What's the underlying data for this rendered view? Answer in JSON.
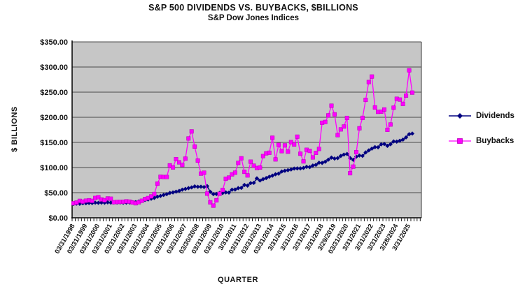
{
  "chart_data": {
    "type": "line",
    "title": "S&P 500 DIVIDENDS VS. BUYBACKS,  $BILLIONS",
    "subtitle": "S&P Dow Jones Indices",
    "xlabel": "QUARTER",
    "ylabel": "$ BILLIONS",
    "ylim": [
      0,
      350
    ],
    "ytick_step": 50,
    "ytick_labels": [
      "$0.00",
      "$50.00",
      "$100.00",
      "$150.00",
      "$200.00",
      "$250.00",
      "$300.00",
      "$350.00"
    ],
    "x_unit": "quarter",
    "x_first_point": "1998-Q1",
    "x_last_point": "2025-Q2",
    "x_label_every_n_points": 4,
    "x_tick_labels": [
      "03/31/1998",
      "03/31/1999",
      "03/31/2000",
      "03/31/2001",
      "03/31/2002",
      "03/31/2003",
      "03/31/2004",
      "03/31/2005",
      "03/31/2006",
      "03/31/2007",
      "03/30/2008",
      "03/31/2009",
      "03/31/2010",
      "3/31/2011",
      "03/31/2012",
      "03/31/2013",
      "03/31/2014",
      "3/31/2015",
      "3/31/2016",
      "3/31/2017",
      "3/31/2018",
      "3/29/2019",
      "03/31/2020",
      "3/31/2021",
      "3/31/2022",
      "3/31/2023",
      "3/28/2024",
      "3/31/2025"
    ],
    "grid": true,
    "plot_bg": "#c6c6c6",
    "grid_color": "#4a4a4a",
    "legend_position": "right",
    "series": [
      {
        "name": "Dividends",
        "color": "#000080",
        "marker": "diamond",
        "values": [
          27.6,
          28.2,
          28.0,
          29.0,
          29.0,
          29.5,
          29.3,
          30.1,
          29.8,
          30.2,
          30.0,
          30.7,
          30.2,
          30.5,
          30.3,
          30.6,
          30.0,
          30.2,
          30.5,
          31.0,
          31.0,
          32.5,
          33.8,
          35.5,
          36.5,
          38.0,
          39.5,
          42.0,
          43.5,
          45.5,
          47.0,
          49.5,
          50.5,
          52.0,
          53.5,
          56.0,
          57.5,
          59.0,
          60.5,
          62.5,
          61.7,
          61.9,
          61.2,
          63.1,
          51.7,
          47.2,
          47.4,
          49.3,
          49.3,
          50.5,
          50.1,
          55.9,
          56.3,
          59.0,
          59.6,
          65.3,
          64.1,
          69.0,
          69.5,
          78.5,
          74.2,
          76.9,
          79.0,
          81.7,
          83.9,
          86.6,
          87.8,
          92.1,
          93.6,
          94.8,
          96.1,
          98.0,
          98.3,
          98.3,
          99.2,
          101.4,
          100.9,
          104.0,
          105.4,
          109.5,
          109.2,
          111.6,
          115.7,
          119.8,
          117.9,
          118.7,
          123.1,
          125.8,
          127.0,
          119.0,
          115.5,
          121.6,
          123.9,
          123.2,
          130.0,
          134.1,
          137.6,
          140.6,
          140.3,
          146.1,
          146.8,
          143.2,
          146.4,
          151.9,
          151.6,
          153.4,
          155.6,
          160.0,
          166.3,
          167.6
        ]
      },
      {
        "name": "Buybacks",
        "color": "#FF00FF",
        "marker": "square",
        "values": [
          28.9,
          30.3,
          33.7,
          32.2,
          34.0,
          34.8,
          33.7,
          39.5,
          41.0,
          36.5,
          35.0,
          38.5,
          38.0,
          31.0,
          31.5,
          31.7,
          31.9,
          32.7,
          32.2,
          30.5,
          28.9,
          30.9,
          33.9,
          37.3,
          39.3,
          42.6,
          47.4,
          67.9,
          81.6,
          81.2,
          81.2,
          104.3,
          100.2,
          116.7,
          110.3,
          105.2,
          117.7,
          157.8,
          171.9,
          141.7,
          113.9,
          87.9,
          89.7,
          48.1,
          30.8,
          24.2,
          34.8,
          47.8,
          55.3,
          77.6,
          80.0,
          86.4,
          89.8,
          109.2,
          118.4,
          91.5,
          84.3,
          111.7,
          103.7,
          99.1,
          100.0,
          122.8,
          128.2,
          129.4,
          159.3,
          116.2,
          145.2,
          132.6,
          144.1,
          131.6,
          150.6,
          145.9,
          161.4,
          127.5,
          112.2,
          135.3,
          133.1,
          120.1,
          129.2,
          137.0,
          189.1,
          190.6,
          203.8,
          223.0,
          205.8,
          164.5,
          175.9,
          181.6,
          198.7,
          88.7,
          101.8,
          130.6,
          178.1,
          198.8,
          234.6,
          270.1,
          281.0,
          219.6,
          210.8,
          211.2,
          215.5,
          175.0,
          185.6,
          219.1,
          236.8,
          235.2,
          226.6,
          243.2,
          293.5,
          249.0
        ]
      }
    ]
  }
}
